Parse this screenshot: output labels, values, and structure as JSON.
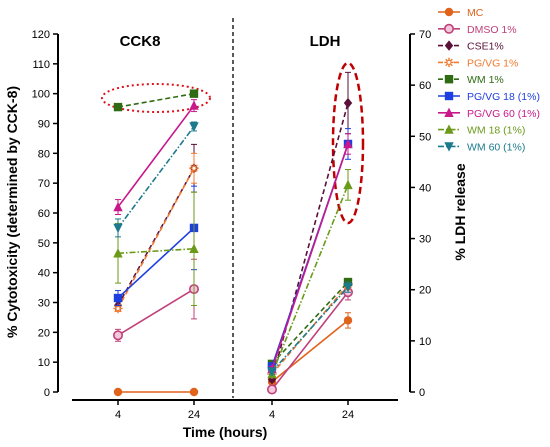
{
  "chart_data": {
    "type": "line",
    "panels": [
      {
        "title": "CCK8",
        "x": [
          "4",
          "24"
        ],
        "axis": "left"
      },
      {
        "title": "LDH",
        "x": [
          "4",
          "24"
        ],
        "axis": "right"
      }
    ],
    "xlabel": "Time (hours)",
    "ylabel_left": "% Cytotoxicity (determined by CCK-8)",
    "ylabel_right": "% LDH release",
    "ylim_left": [
      0,
      120
    ],
    "ylim_right": [
      0,
      70
    ],
    "yticks_left": [
      "0",
      "10",
      "20",
      "30",
      "40",
      "50",
      "60",
      "70",
      "80",
      "90",
      "100",
      "110",
      "120"
    ],
    "yticks_right": [
      "0",
      "10",
      "20",
      "30",
      "40",
      "50",
      "60",
      "70"
    ],
    "legend_position": "right",
    "series": [
      {
        "name": "MC",
        "color": "#e0621b",
        "marker": "circle",
        "dash": "solid",
        "cck8": [
          0,
          0
        ],
        "cck8_err": [
          0,
          0
        ],
        "ldh": [
          2,
          14
        ],
        "ldh_err": [
          0.5,
          1.5
        ]
      },
      {
        "name": "DMSO 1%",
        "color": "#c0407a",
        "marker": "circle-open",
        "dash": "solid",
        "cck8": [
          19,
          34.5
        ],
        "cck8_err": [
          2,
          10
        ],
        "ldh": [
          0.5,
          19.5
        ],
        "ldh_err": [
          0.3,
          1.5
        ]
      },
      {
        "name": "CSE1%",
        "color": "#5a1038",
        "marker": "diamond",
        "dash": "dashed",
        "cck8": [
          29,
          75
        ],
        "cck8_err": [
          1.5,
          8
        ],
        "ldh": [
          2.5,
          56.5
        ],
        "ldh_err": [
          0.5,
          6
        ]
      },
      {
        "name": "PG/VG 1%",
        "color": "#f07a30",
        "marker": "asterisk",
        "dash": "dashed",
        "cck8": [
          28,
          75
        ],
        "cck8_err": [
          1,
          5
        ],
        "ldh": [
          3.5,
          21
        ],
        "ldh_err": [
          0.5,
          1
        ]
      },
      {
        "name": "WM 1%",
        "color": "#2e6b12",
        "marker": "square",
        "dash": "dashed",
        "cck8": [
          95.5,
          100
        ],
        "cck8_err": [
          1,
          0.5
        ],
        "ldh": [
          5.5,
          21.5
        ],
        "ldh_err": [
          0.5,
          0.7
        ]
      },
      {
        "name": "PG/VG 18 (1%)",
        "color": "#1d3fe0",
        "marker": "square",
        "dash": "solid",
        "cck8": [
          31.5,
          55
        ],
        "cck8_err": [
          2.5,
          14
        ],
        "ldh": [
          5,
          48.5
        ],
        "ldh_err": [
          0.5,
          3
        ]
      },
      {
        "name": "PG/VG 60 (1%)",
        "color": "#c8188c",
        "marker": "triangle",
        "dash": "solid",
        "cck8": [
          62,
          96
        ],
        "cck8_err": [
          2.5,
          2
        ],
        "ldh": [
          4.5,
          48.5
        ],
        "ldh_err": [
          0.5,
          2
        ]
      },
      {
        "name": "WM 18 (1%)",
        "color": "#6b9a1a",
        "marker": "triangle",
        "dash": "dashdot",
        "cck8": [
          46.5,
          48
        ],
        "cck8_err": [
          10,
          19
        ],
        "ldh": [
          3.5,
          40.5
        ],
        "ldh_err": [
          0.5,
          3
        ]
      },
      {
        "name": "WM 60 (1%)",
        "color": "#1c7a8c",
        "marker": "triangle-down",
        "dash": "dashdot",
        "cck8": [
          55,
          89
        ],
        "cck8_err": [
          3,
          1.5
        ],
        "ldh": [
          4,
          20.5
        ],
        "ldh_err": [
          0.5,
          1
        ]
      }
    ]
  }
}
